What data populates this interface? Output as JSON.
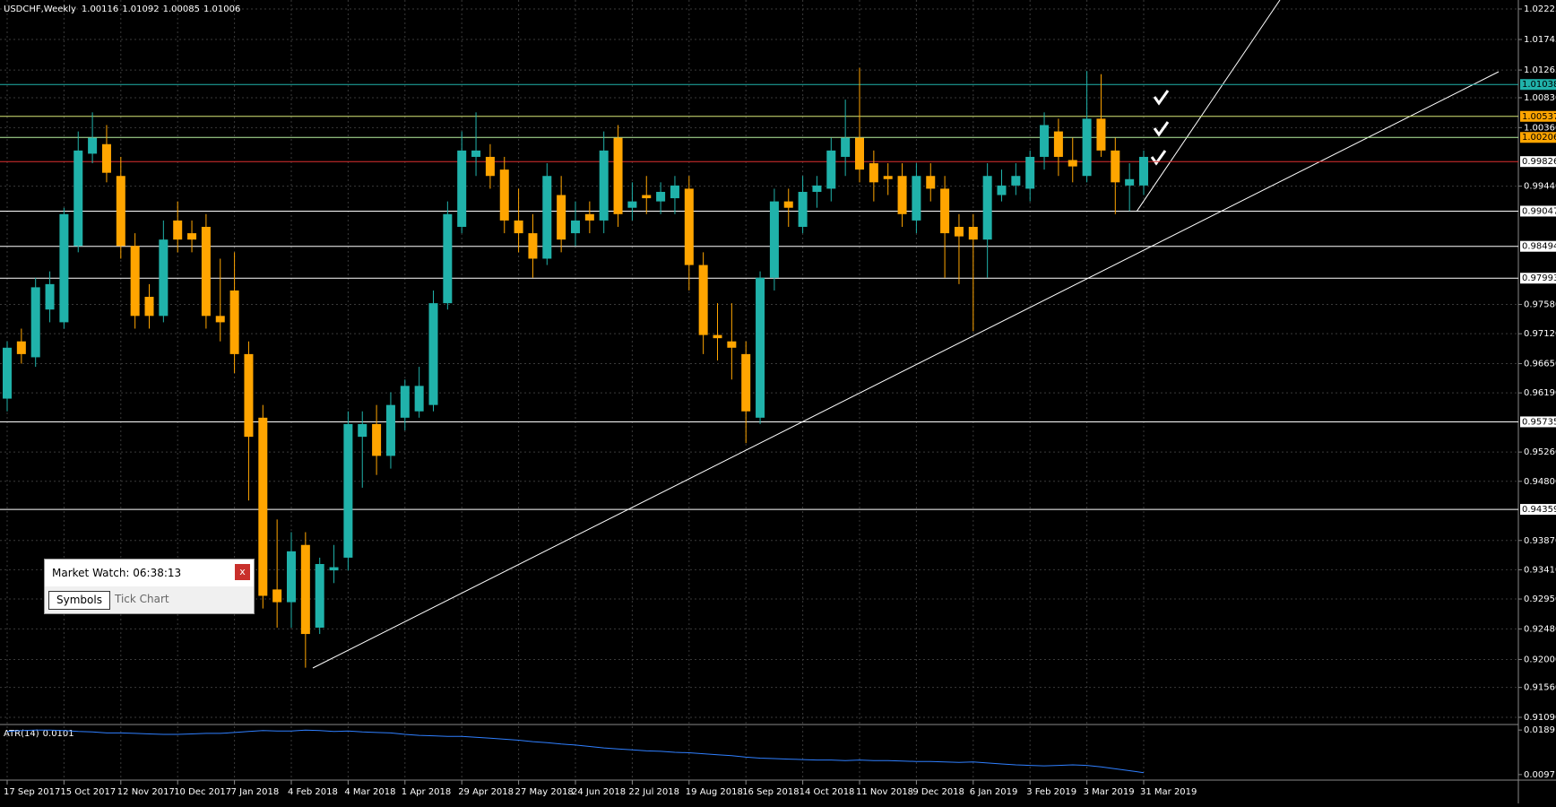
{
  "chart_data": {
    "type": "candlestick",
    "title": "USDCHF,Weekly",
    "header_values": [
      1.00116,
      1.01092,
      1.00085,
      1.01006
    ],
    "categories": [
      "17 Sep 2017",
      null,
      null,
      null,
      "15 Oct 2017",
      null,
      null,
      null,
      "12 Nov 2017",
      null,
      null,
      null,
      "10 Dec 2017",
      null,
      null,
      null,
      "7 Jan 2018",
      null,
      null,
      null,
      "4 Feb 2018",
      null,
      null,
      null,
      "4 Mar 2018",
      null,
      null,
      null,
      "1 Apr 2018",
      null,
      null,
      null,
      "29 Apr 2018",
      null,
      null,
      null,
      "27 May 2018",
      null,
      null,
      null,
      "24 Jun 2018",
      null,
      null,
      null,
      "22 Jul 2018",
      null,
      null,
      null,
      "19 Aug 2018",
      null,
      null,
      null,
      "16 Sep 2018",
      null,
      null,
      null,
      "14 Oct 2018",
      null,
      null,
      null,
      "11 Nov 2018",
      null,
      null,
      null,
      "9 Dec 2018",
      null,
      null,
      null,
      "6 Jan 2019",
      null,
      null,
      null,
      "3 Feb 2019",
      null,
      null,
      null,
      "3 Mar 2019",
      null,
      null,
      null,
      "31 Mar 2019"
    ],
    "open": [
      0.961,
      0.97,
      0.9675,
      0.975,
      0.973,
      0.985,
      0.9995,
      1.001,
      0.996,
      0.985,
      0.977,
      0.974,
      0.989,
      0.987,
      0.988,
      0.974,
      0.978,
      0.968,
      0.958,
      0.931,
      0.929,
      0.938,
      0.925,
      0.934,
      0.936,
      0.955,
      0.957,
      0.952,
      0.958,
      0.959,
      0.96,
      0.976,
      0.988,
      0.999,
      0.999,
      0.997,
      0.989,
      0.987,
      0.983,
      0.993,
      0.987,
      0.99,
      0.989,
      1.002,
      0.991,
      0.993,
      0.992,
      0.9925,
      0.994,
      0.982,
      0.971,
      0.97,
      0.968,
      0.958,
      0.98,
      0.992,
      0.988,
      0.9935,
      0.994,
      0.999,
      1.002,
      0.998,
      0.996,
      0.996,
      0.989,
      0.996,
      0.994,
      0.988,
      0.988,
      0.986,
      0.993,
      0.9945,
      0.994,
      0.999,
      1.003,
      0.9985,
      0.996,
      1.005,
      1.0,
      0.9945,
      0.9945
    ],
    "high": [
      0.97,
      0.972,
      0.98,
      0.981,
      0.991,
      1.003,
      1.006,
      1.004,
      0.999,
      0.987,
      0.979,
      0.989,
      0.992,
      0.989,
      0.99,
      0.983,
      0.984,
      0.97,
      0.96,
      0.942,
      0.94,
      0.94,
      0.936,
      0.938,
      0.959,
      0.959,
      0.96,
      0.962,
      0.964,
      0.966,
      0.978,
      0.992,
      1.003,
      1.006,
      1.001,
      0.999,
      0.994,
      0.99,
      0.998,
      0.996,
      0.992,
      0.992,
      1.003,
      1.004,
      0.995,
      0.996,
      0.995,
      0.996,
      0.996,
      0.984,
      0.976,
      0.976,
      0.97,
      0.981,
      0.994,
      0.994,
      0.996,
      0.996,
      1.002,
      1.008,
      1.013,
      1.0,
      0.998,
      0.998,
      0.998,
      0.998,
      0.996,
      0.99,
      0.99,
      0.998,
      0.997,
      0.998,
      1.0,
      1.006,
      1.005,
      1.002,
      1.0125,
      1.012,
      1.002,
      0.998,
      1.0
    ],
    "low": [
      0.959,
      0.9665,
      0.966,
      0.973,
      0.972,
      0.984,
      0.998,
      0.995,
      0.983,
      0.972,
      0.972,
      0.973,
      0.984,
      0.984,
      0.972,
      0.97,
      0.965,
      0.945,
      0.928,
      0.925,
      0.925,
      0.9187,
      0.924,
      0.932,
      0.934,
      0.947,
      0.949,
      0.95,
      0.956,
      0.958,
      0.959,
      0.975,
      0.987,
      0.996,
      0.994,
      0.987,
      0.984,
      0.98,
      0.982,
      0.984,
      0.985,
      0.987,
      0.987,
      0.988,
      0.989,
      0.99,
      0.99,
      0.99,
      0.978,
      0.968,
      0.967,
      0.964,
      0.954,
      0.957,
      0.978,
      0.988,
      0.987,
      0.991,
      0.992,
      0.996,
      0.995,
      0.992,
      0.993,
      0.988,
      0.987,
      0.992,
      0.98,
      0.979,
      0.9716,
      0.98,
      0.992,
      0.993,
      0.992,
      0.997,
      0.996,
      0.995,
      0.995,
      0.999,
      0.99,
      0.9905,
      0.993
    ],
    "close": [
      0.969,
      0.968,
      0.9785,
      0.979,
      0.99,
      1.0,
      1.002,
      0.9965,
      0.985,
      0.974,
      0.974,
      0.986,
      0.986,
      0.986,
      0.974,
      0.973,
      0.968,
      0.955,
      0.93,
      0.929,
      0.937,
      0.924,
      0.935,
      0.9345,
      0.957,
      0.957,
      0.952,
      0.96,
      0.963,
      0.963,
      0.976,
      0.99,
      1.0,
      1.0,
      0.996,
      0.989,
      0.987,
      0.983,
      0.996,
      0.986,
      0.989,
      0.989,
      1.0,
      0.99,
      0.992,
      0.9925,
      0.9935,
      0.9945,
      0.982,
      0.971,
      0.9705,
      0.969,
      0.959,
      0.98,
      0.992,
      0.991,
      0.9935,
      0.9945,
      1.0,
      1.002,
      0.997,
      0.995,
      0.9955,
      0.99,
      0.996,
      0.994,
      0.987,
      0.9865,
      0.986,
      0.996,
      0.9945,
      0.996,
      0.999,
      1.004,
      0.999,
      0.9975,
      1.005,
      1.0,
      0.995,
      0.9955,
      0.999
    ],
    "up_color": "#20b2aa",
    "down_color": "#ffa500",
    "ylim": [
      0.9109,
      1.02225
    ],
    "yticks": [
      {
        "value": 1.02225,
        "label": "1.02225"
      },
      {
        "value": 1.01745,
        "label": "1.01745"
      },
      {
        "value": 1.01265,
        "label": "1.01265"
      },
      {
        "value": 1.0083,
        "label": "1.00830"
      },
      {
        "value": 1.0036,
        "label": "1.00360"
      },
      {
        "value": 0.9944,
        "label": "0.99440"
      },
      {
        "value": 0.9758,
        "label": "0.97580"
      },
      {
        "value": 0.9712,
        "label": "0.97120"
      },
      {
        "value": 0.9665,
        "label": "0.96650"
      },
      {
        "value": 0.9619,
        "label": "0.96190"
      },
      {
        "value": 0.9526,
        "label": "0.95260"
      },
      {
        "value": 0.948,
        "label": "0.94800"
      },
      {
        "value": 0.9387,
        "label": "0.93870"
      },
      {
        "value": 0.9341,
        "label": "0.93410"
      },
      {
        "value": 0.9295,
        "label": "0.92950"
      },
      {
        "value": 0.9248,
        "label": "0.92480"
      },
      {
        "value": 0.92,
        "label": "0.92000"
      },
      {
        "value": 0.9156,
        "label": "0.91560"
      },
      {
        "value": 0.9109,
        "label": "0.91090"
      }
    ],
    "grid": true,
    "levels": [
      {
        "value": 1.01038,
        "color": "#20b2aa",
        "label_color": "#20b2aa"
      },
      {
        "value": 1.00537,
        "color": "#d8e878",
        "label_color": "#ffa500"
      },
      {
        "value": 1.00206,
        "color": "#b8f0a0",
        "label_color": "#ffa500"
      },
      {
        "value": 0.99826,
        "color": "#e03030",
        "label_color": "#ffffff"
      },
      {
        "value": 0.99047,
        "color": "#ffffff",
        "label_color": "#ffffff"
      },
      {
        "value": 0.98494,
        "color": "#ffffff",
        "label_color": "#ffffff"
      },
      {
        "value": 0.97993,
        "color": "#ffffff",
        "label_color": "#ffffff"
      },
      {
        "value": 0.95735,
        "color": "#ffffff",
        "label_color": "#ffffff"
      },
      {
        "value": 0.94359,
        "color": "#ffffff",
        "label_color": "#ffffff"
      }
    ],
    "indicator": {
      "name": "ATR(14)",
      "current": 0.0101,
      "color": "#2f7fff",
      "values": [
        0.0186,
        0.0188,
        0.0189,
        0.0189,
        0.0188,
        0.0186,
        0.0185,
        0.0183,
        0.0183,
        0.0182,
        0.0181,
        0.018,
        0.018,
        0.0181,
        0.0182,
        0.0182,
        0.0184,
        0.0186,
        0.0188,
        0.0187,
        0.0187,
        0.0189,
        0.0188,
        0.0186,
        0.0187,
        0.0185,
        0.0184,
        0.0183,
        0.018,
        0.0178,
        0.0177,
        0.0176,
        0.0176,
        0.0174,
        0.0172,
        0.017,
        0.0168,
        0.0165,
        0.0163,
        0.016,
        0.0158,
        0.0155,
        0.0152,
        0.015,
        0.0148,
        0.0146,
        0.0145,
        0.0143,
        0.0142,
        0.014,
        0.0138,
        0.0136,
        0.0133,
        0.0131,
        0.013,
        0.0129,
        0.0128,
        0.0127,
        0.0127,
        0.0126,
        0.0127,
        0.0126,
        0.0126,
        0.0125,
        0.0124,
        0.0124,
        0.0123,
        0.0122,
        0.0123,
        0.0121,
        0.0119,
        0.0117,
        0.0116,
        0.0115,
        0.0116,
        0.0117,
        0.0116,
        0.0113,
        0.0109,
        0.0105,
        0.0101
      ],
      "ylim": [
        0.0093,
        0.0193
      ],
      "yticks": [
        0.0189,
        0.0097
      ]
    }
  },
  "market_watch": {
    "title": "Market Watch: 06:38:13",
    "close": "x",
    "tabs": [
      "Symbols",
      "Tick Chart"
    ]
  }
}
